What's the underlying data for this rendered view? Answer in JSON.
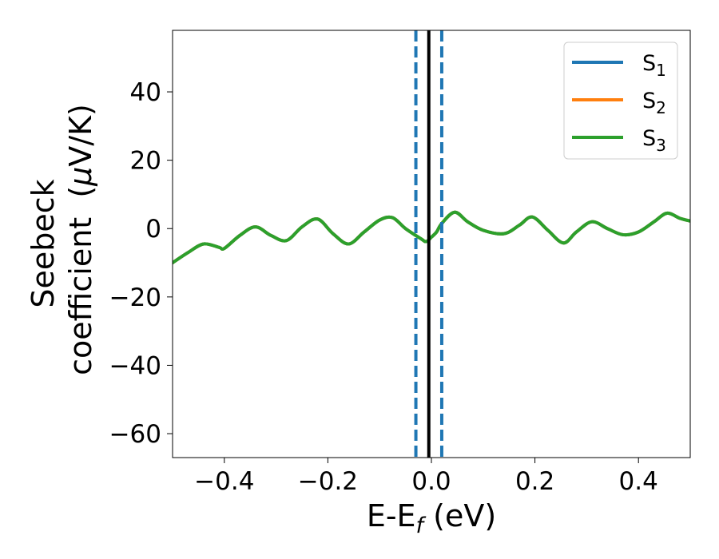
{
  "chart_data": {
    "type": "line",
    "xlabel": {
      "base": "E-E",
      "sub": "f",
      "suffix": " (eV)"
    },
    "ylabel": {
      "line1": "Seebeck",
      "line2_prefix": "coefficient  (",
      "mu": "μ",
      "line2_suffix": "V/K)"
    },
    "xlim": [
      -0.5,
      0.5
    ],
    "ylim": [
      -67,
      58
    ],
    "xticks": [
      -0.4,
      -0.2,
      0.0,
      0.2,
      0.4
    ],
    "xtick_labels": [
      "−0.4",
      "−0.2",
      "0.0",
      "0.2",
      "0.4"
    ],
    "yticks": [
      40,
      20,
      0,
      -20,
      -40,
      -60
    ],
    "ytick_labels": [
      "40",
      "20",
      "0",
      "−20",
      "−40",
      "−60"
    ],
    "grid": false,
    "legend_position": "top-right",
    "vlines": [
      {
        "x": -0.03,
        "style": "dashed",
        "color": "#1f77b4"
      },
      {
        "x": 0.02,
        "style": "dashed",
        "color": "#1f77b4"
      },
      {
        "x": -0.005,
        "style": "solid",
        "color": "#000000"
      }
    ],
    "series": [
      {
        "name": "S",
        "sub": "1",
        "color": "#1f77b4",
        "x": [
          -0.5,
          -0.47,
          -0.44,
          -0.41,
          -0.4,
          -0.37,
          -0.34,
          -0.31,
          -0.28,
          -0.25,
          -0.22,
          -0.19,
          -0.16,
          -0.13,
          -0.1,
          -0.075,
          -0.05,
          -0.02,
          -0.01,
          0.0,
          0.01,
          0.02,
          0.045,
          0.07,
          0.1,
          0.14,
          0.17,
          0.195,
          0.225,
          0.255,
          0.28,
          0.31,
          0.34,
          0.37,
          0.4,
          0.43,
          0.455,
          0.48,
          0.5
        ],
        "y": [
          -10,
          -7,
          -4.5,
          -5.5,
          -5.8,
          -2,
          0.5,
          -2,
          -3.5,
          0.5,
          2.8,
          -1.5,
          -4.5,
          -1,
          2.5,
          3.2,
          0,
          -3,
          -3.8,
          -2.5,
          -1,
          1.5,
          4.8,
          2,
          -0.5,
          -1.5,
          1,
          3.4,
          -0.5,
          -4.2,
          -1,
          2,
          0,
          -1.8,
          -1,
          2,
          4.5,
          3,
          2.2
        ]
      },
      {
        "name": "S",
        "sub": "2",
        "color": "#ff7f0e",
        "x": [
          -0.5,
          -0.47,
          -0.44,
          -0.41,
          -0.4,
          -0.37,
          -0.34,
          -0.31,
          -0.28,
          -0.25,
          -0.22,
          -0.19,
          -0.16,
          -0.13,
          -0.1,
          -0.075,
          -0.05,
          -0.02,
          -0.01,
          0.0,
          0.01,
          0.02,
          0.045,
          0.07,
          0.1,
          0.14,
          0.17,
          0.195,
          0.225,
          0.255,
          0.28,
          0.31,
          0.34,
          0.37,
          0.4,
          0.43,
          0.455,
          0.48,
          0.5
        ],
        "y": [
          -10,
          -7,
          -4.5,
          -5.5,
          -5.8,
          -2,
          0.5,
          -2,
          -3.5,
          0.5,
          2.8,
          -1.5,
          -4.5,
          -1,
          2.5,
          3.2,
          0,
          -3,
          -3.8,
          -2.5,
          -1,
          1.5,
          4.8,
          2,
          -0.5,
          -1.5,
          1,
          3.4,
          -0.5,
          -4.2,
          -1,
          2,
          0,
          -1.8,
          -1,
          2,
          4.5,
          3,
          2.2
        ]
      },
      {
        "name": "S",
        "sub": "3",
        "color": "#2ca02c",
        "x": [
          -0.5,
          -0.47,
          -0.44,
          -0.41,
          -0.4,
          -0.37,
          -0.34,
          -0.31,
          -0.28,
          -0.25,
          -0.22,
          -0.19,
          -0.16,
          -0.13,
          -0.1,
          -0.075,
          -0.05,
          -0.02,
          -0.01,
          0.0,
          0.01,
          0.02,
          0.045,
          0.07,
          0.1,
          0.14,
          0.17,
          0.195,
          0.225,
          0.255,
          0.28,
          0.31,
          0.34,
          0.37,
          0.4,
          0.43,
          0.455,
          0.48,
          0.5
        ],
        "y": [
          -10,
          -7,
          -4.5,
          -5.5,
          -5.8,
          -2,
          0.5,
          -2,
          -3.5,
          0.5,
          2.8,
          -1.5,
          -4.5,
          -1,
          2.5,
          3.2,
          0,
          -3,
          -3.8,
          -2.5,
          -1,
          1.5,
          4.8,
          2,
          -0.5,
          -1.5,
          1,
          3.4,
          -0.5,
          -4.2,
          -1,
          2,
          0,
          -1.8,
          -1,
          2,
          4.5,
          3,
          2.2
        ]
      }
    ]
  }
}
